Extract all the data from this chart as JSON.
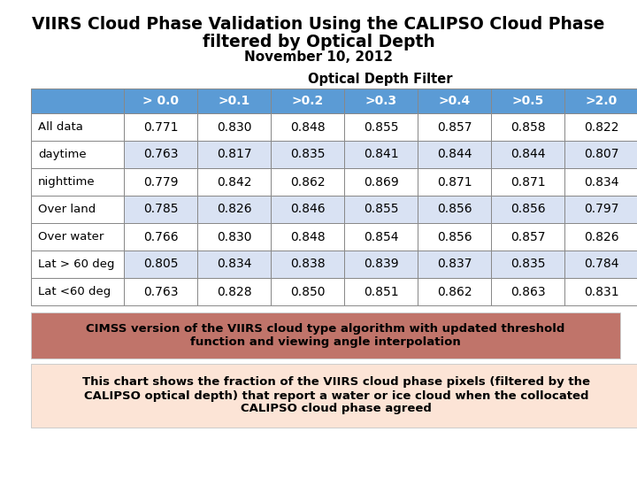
{
  "title_line1": "VIIRS Cloud Phase Validation Using the CALIPSO Cloud Phase",
  "title_line2": "filtered by Optical Depth",
  "title_line3": "November 10, 2012",
  "section_label": "Optical Depth Filter",
  "col_headers": [
    "> 0.0",
    ">0.1",
    ">0.2",
    ">0.3",
    ">0.4",
    ">0.5",
    ">2.0"
  ],
  "row_headers": [
    "All data",
    "daytime",
    "nighttime",
    "Over land",
    "Over water",
    "Lat > 60 deg",
    "Lat <60 deg"
  ],
  "table_data": [
    [
      0.771,
      0.83,
      0.848,
      0.855,
      0.857,
      0.858,
      0.822
    ],
    [
      0.763,
      0.817,
      0.835,
      0.841,
      0.844,
      0.844,
      0.807
    ],
    [
      0.779,
      0.842,
      0.862,
      0.869,
      0.871,
      0.871,
      0.834
    ],
    [
      0.785,
      0.826,
      0.846,
      0.855,
      0.856,
      0.856,
      0.797
    ],
    [
      0.766,
      0.83,
      0.848,
      0.854,
      0.856,
      0.857,
      0.826
    ],
    [
      0.805,
      0.834,
      0.838,
      0.839,
      0.837,
      0.835,
      0.784
    ],
    [
      0.763,
      0.828,
      0.85,
      0.851,
      0.862,
      0.863,
      0.831
    ]
  ],
  "header_bg_color": "#5b9bd5",
  "header_text_color": "#ffffff",
  "row_label_bg_color": "#ffffff",
  "row_bg_alt": "#d9e2f3",
  "row_bg_norm": "#ffffff",
  "note1_bg": "#c0746a",
  "note1_text": "CIMSS version of the VIIRS cloud type algorithm with updated threshold\nfunction and viewing angle interpolation",
  "note1_text_color": "#000000",
  "note2_bg": "#fce4d6",
  "note2_text": "This chart shows the fraction of the VIIRS cloud phase pixels (filtered by the\nCALIPSO optical depth) that report a water or ice cloud when the collocated\nCALIPSO cloud phase agreed",
  "note2_text_color": "#000000",
  "bg_color": "#ffffff",
  "title_fontsize": 13.5,
  "subtitle_fontsize": 11,
  "section_fontsize": 10.5,
  "header_fontsize": 10,
  "cell_fontsize": 10,
  "row_label_fontsize": 9.5,
  "note1_fontsize": 9.5,
  "note2_fontsize": 9.5
}
